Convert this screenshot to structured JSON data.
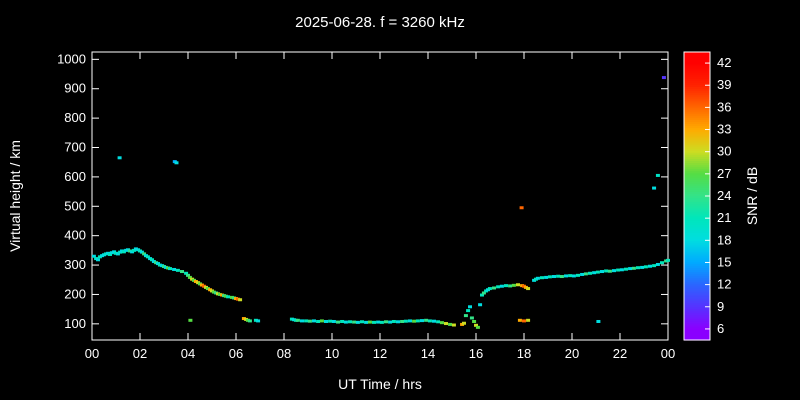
{
  "title": "2025-06-28. f = 3260 kHz",
  "colors": {
    "background": "#000000",
    "foreground": "#ffffff"
  },
  "axes": {
    "x_label": "UT Time / hrs",
    "y_label": "Virtual height / km",
    "colorbar_label": "SNR / dB",
    "x_tick_labels": [
      "00",
      "02",
      "04",
      "06",
      "08",
      "10",
      "12",
      "14",
      "16",
      "18",
      "20",
      "22",
      "00"
    ],
    "x_tick_values": [
      0,
      2,
      4,
      6,
      8,
      10,
      12,
      14,
      16,
      18,
      20,
      22,
      24
    ],
    "y_tick_values": [
      100,
      200,
      300,
      400,
      500,
      600,
      700,
      800,
      900,
      1000
    ],
    "colorbar_tick_values": [
      6,
      9,
      12,
      15,
      18,
      21,
      24,
      27,
      30,
      33,
      36,
      39,
      42
    ]
  },
  "chart_data": {
    "type": "scatter",
    "title": "2025-06-28. f = 3260 kHz",
    "xlabel": "UT Time / hrs",
    "ylabel": "Virtual height / km",
    "colorbar_label": "SNR / dB",
    "xlim": [
      0,
      24
    ],
    "ylim": [
      45,
      1025
    ],
    "colorbar_range": [
      4.5,
      43.5
    ],
    "snr_range": [
      6,
      42
    ],
    "grid": false,
    "colormap_anchors": [
      [
        6,
        "#8a00ff"
      ],
      [
        9,
        "#5533ff"
      ],
      [
        12,
        "#2a66ff"
      ],
      [
        15,
        "#00aaff"
      ],
      [
        18,
        "#00dde0"
      ],
      [
        21,
        "#00e6bb"
      ],
      [
        24,
        "#33e388"
      ],
      [
        27,
        "#55dd44"
      ],
      [
        30,
        "#ccdd22"
      ],
      [
        33,
        "#ffaa00"
      ],
      [
        36,
        "#ff6600"
      ],
      [
        39,
        "#ff2200"
      ],
      [
        42,
        "#ff0000"
      ]
    ],
    "columns": [
      "ut_hours",
      "virtual_height_km",
      "snr_db"
    ],
    "points": [
      [
        0.08,
        330,
        18
      ],
      [
        0.17,
        322,
        20
      ],
      [
        0.25,
        318,
        18
      ],
      [
        0.33,
        328,
        21
      ],
      [
        0.42,
        332,
        18
      ],
      [
        0.5,
        335,
        18
      ],
      [
        0.58,
        338,
        20
      ],
      [
        0.67,
        340,
        18
      ],
      [
        0.75,
        336,
        21
      ],
      [
        0.83,
        342,
        18
      ],
      [
        0.92,
        345,
        18
      ],
      [
        1.0,
        340,
        21
      ],
      [
        1.08,
        338,
        18
      ],
      [
        1.15,
        665,
        18
      ],
      [
        1.17,
        344,
        20
      ],
      [
        1.25,
        348,
        18
      ],
      [
        1.33,
        345,
        21
      ],
      [
        1.42,
        350,
        18
      ],
      [
        1.5,
        352,
        18
      ],
      [
        1.58,
        348,
        24
      ],
      [
        1.67,
        345,
        18
      ],
      [
        1.75,
        350,
        21
      ],
      [
        1.83,
        355,
        18
      ],
      [
        1.92,
        352,
        18
      ],
      [
        2.0,
        348,
        21
      ],
      [
        2.08,
        344,
        18
      ],
      [
        2.17,
        338,
        24
      ],
      [
        2.25,
        332,
        18
      ],
      [
        2.33,
        328,
        21
      ],
      [
        2.42,
        322,
        18
      ],
      [
        2.5,
        318,
        21
      ],
      [
        2.58,
        312,
        18
      ],
      [
        2.67,
        308,
        24
      ],
      [
        2.75,
        305,
        18
      ],
      [
        2.83,
        300,
        21
      ],
      [
        2.92,
        298,
        18
      ],
      [
        3.0,
        295,
        24
      ],
      [
        3.08,
        292,
        18
      ],
      [
        3.17,
        290,
        27
      ],
      [
        3.25,
        288,
        21
      ],
      [
        3.42,
        285,
        18
      ],
      [
        3.45,
        652,
        15
      ],
      [
        3.52,
        648,
        18
      ],
      [
        3.58,
        282,
        21
      ],
      [
        3.75,
        278,
        24
      ],
      [
        3.92,
        272,
        21
      ],
      [
        4.0,
        265,
        24
      ],
      [
        4.08,
        258,
        27
      ],
      [
        4.1,
        112,
        27
      ],
      [
        4.17,
        252,
        30
      ],
      [
        4.25,
        248,
        27
      ],
      [
        4.33,
        244,
        33
      ],
      [
        4.42,
        240,
        30
      ],
      [
        4.5,
        236,
        27
      ],
      [
        4.58,
        232,
        33
      ],
      [
        4.67,
        228,
        36
      ],
      [
        4.75,
        224,
        30
      ],
      [
        4.83,
        220,
        27
      ],
      [
        4.92,
        216,
        33
      ],
      [
        5.0,
        212,
        30
      ],
      [
        5.08,
        208,
        27
      ],
      [
        5.17,
        205,
        24
      ],
      [
        5.25,
        202,
        30
      ],
      [
        5.33,
        200,
        27
      ],
      [
        5.42,
        198,
        33
      ],
      [
        5.5,
        196,
        24
      ],
      [
        5.58,
        194,
        27
      ],
      [
        5.67,
        192,
        21
      ],
      [
        5.83,
        190,
        27
      ],
      [
        5.92,
        188,
        24
      ],
      [
        6.0,
        186,
        33
      ],
      [
        6.08,
        184,
        36
      ],
      [
        6.17,
        182,
        30
      ],
      [
        6.33,
        118,
        33
      ],
      [
        6.42,
        115,
        30
      ],
      [
        6.5,
        112,
        27
      ],
      [
        6.58,
        110,
        24
      ],
      [
        6.83,
        112,
        21
      ],
      [
        6.92,
        110,
        18
      ],
      [
        8.33,
        116,
        21
      ],
      [
        8.42,
        114,
        18
      ],
      [
        8.5,
        112,
        21
      ],
      [
        8.58,
        112,
        24
      ],
      [
        8.75,
        110,
        18
      ],
      [
        8.92,
        110,
        21
      ],
      [
        9.08,
        109,
        24
      ],
      [
        9.25,
        110,
        18
      ],
      [
        9.42,
        108,
        21
      ],
      [
        9.58,
        110,
        27
      ],
      [
        9.75,
        108,
        18
      ],
      [
        9.92,
        109,
        21
      ],
      [
        10.08,
        108,
        18
      ],
      [
        10.25,
        106,
        24
      ],
      [
        10.42,
        108,
        21
      ],
      [
        10.58,
        106,
        18
      ],
      [
        10.75,
        107,
        21
      ],
      [
        10.92,
        106,
        24
      ],
      [
        11.08,
        105,
        18
      ],
      [
        11.25,
        107,
        21
      ],
      [
        11.42,
        105,
        18
      ],
      [
        11.58,
        106,
        27
      ],
      [
        11.75,
        105,
        21
      ],
      [
        11.92,
        106,
        18
      ],
      [
        12.08,
        105,
        21
      ],
      [
        12.25,
        107,
        24
      ],
      [
        12.42,
        106,
        18
      ],
      [
        12.58,
        108,
        21
      ],
      [
        12.75,
        107,
        18
      ],
      [
        12.92,
        108,
        24
      ],
      [
        13.08,
        109,
        21
      ],
      [
        13.25,
        110,
        18
      ],
      [
        13.42,
        109,
        27
      ],
      [
        13.58,
        110,
        21
      ],
      [
        13.75,
        111,
        18
      ],
      [
        13.92,
        112,
        24
      ],
      [
        14.08,
        110,
        21
      ],
      [
        14.25,
        109,
        18
      ],
      [
        14.42,
        107,
        21
      ],
      [
        14.58,
        104,
        27
      ],
      [
        14.75,
        101,
        30
      ],
      [
        14.92,
        98,
        27
      ],
      [
        15.08,
        96,
        30
      ],
      [
        15.42,
        98,
        33
      ],
      [
        15.5,
        102,
        30
      ],
      [
        15.58,
        128,
        24
      ],
      [
        15.67,
        145,
        21
      ],
      [
        15.75,
        158,
        18
      ],
      [
        15.83,
        120,
        24
      ],
      [
        15.92,
        108,
        27
      ],
      [
        16.0,
        95,
        30
      ],
      [
        16.08,
        88,
        27
      ],
      [
        16.17,
        165,
        18
      ],
      [
        16.25,
        198,
        21
      ],
      [
        16.33,
        205,
        24
      ],
      [
        16.42,
        212,
        21
      ],
      [
        16.5,
        216,
        18
      ],
      [
        16.58,
        220,
        21
      ],
      [
        16.75,
        222,
        24
      ],
      [
        16.92,
        226,
        21
      ],
      [
        17.08,
        228,
        18
      ],
      [
        17.25,
        230,
        21
      ],
      [
        17.42,
        229,
        24
      ],
      [
        17.58,
        231,
        27
      ],
      [
        17.75,
        233,
        30
      ],
      [
        17.83,
        112,
        33
      ],
      [
        17.9,
        495,
        36
      ],
      [
        17.92,
        230,
        33
      ],
      [
        18.0,
        228,
        36
      ],
      [
        18.0,
        110,
        36
      ],
      [
        18.08,
        224,
        33
      ],
      [
        18.17,
        220,
        30
      ],
      [
        18.17,
        112,
        30
      ],
      [
        18.42,
        248,
        18
      ],
      [
        18.5,
        252,
        21
      ],
      [
        18.58,
        255,
        18
      ],
      [
        18.75,
        257,
        21
      ],
      [
        18.92,
        258,
        18
      ],
      [
        19.08,
        260,
        21
      ],
      [
        19.25,
        261,
        18
      ],
      [
        19.42,
        262,
        21
      ],
      [
        19.58,
        261,
        24
      ],
      [
        19.75,
        263,
        18
      ],
      [
        19.92,
        264,
        21
      ],
      [
        20.08,
        263,
        18
      ],
      [
        20.25,
        265,
        21
      ],
      [
        20.42,
        268,
        18
      ],
      [
        20.58,
        270,
        24
      ],
      [
        20.75,
        272,
        21
      ],
      [
        20.92,
        274,
        18
      ],
      [
        21.08,
        276,
        21
      ],
      [
        21.1,
        108,
        18
      ],
      [
        21.25,
        278,
        18
      ],
      [
        21.42,
        280,
        21
      ],
      [
        21.58,
        279,
        24
      ],
      [
        21.75,
        281,
        18
      ],
      [
        21.92,
        283,
        21
      ],
      [
        22.08,
        284,
        18
      ],
      [
        22.25,
        286,
        21
      ],
      [
        22.42,
        288,
        18
      ],
      [
        22.58,
        289,
        24
      ],
      [
        22.75,
        291,
        21
      ],
      [
        22.92,
        292,
        18
      ],
      [
        23.08,
        294,
        21
      ],
      [
        23.25,
        296,
        18
      ],
      [
        23.42,
        298,
        21
      ],
      [
        23.42,
        562,
        18
      ],
      [
        23.58,
        302,
        18
      ],
      [
        23.58,
        605,
        20
      ],
      [
        23.75,
        308,
        21
      ],
      [
        23.83,
        938,
        9
      ],
      [
        23.92,
        314,
        24
      ],
      [
        24.0,
        316,
        21
      ]
    ]
  }
}
